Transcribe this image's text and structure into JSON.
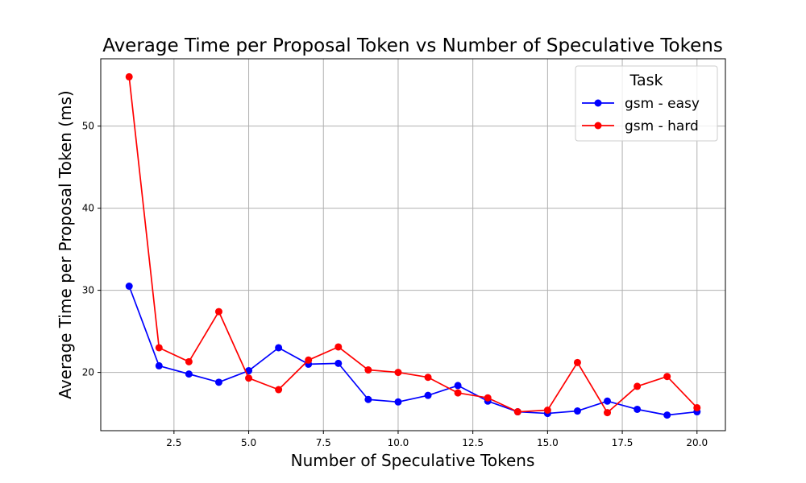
{
  "chart_data": {
    "type": "line",
    "title": "Average Time per Proposal Token vs Number of Speculative Tokens",
    "xlabel": "Number of Speculative Tokens",
    "ylabel": "Average Time per Proposal Token (ms)",
    "xlim": [
      0.05,
      20.95
    ],
    "ylim": [
      12.9,
      58.2
    ],
    "xticks": [
      2.5,
      5.0,
      7.5,
      10.0,
      12.5,
      15.0,
      17.5,
      20.0
    ],
    "xtick_labels": [
      "2.5",
      "5.0",
      "7.5",
      "10.0",
      "12.5",
      "15.0",
      "17.5",
      "20.0"
    ],
    "yticks": [
      20,
      30,
      40,
      50
    ],
    "ytick_labels": [
      "20",
      "30",
      "40",
      "50"
    ],
    "grid": true,
    "legend": {
      "title": "Task",
      "placement": "top-right"
    },
    "x": [
      1,
      2,
      3,
      4,
      5,
      6,
      7,
      8,
      9,
      10,
      11,
      12,
      13,
      14,
      15,
      16,
      17,
      18,
      19,
      20
    ],
    "series": [
      {
        "name": "gsm - easy",
        "color": "#0000ff",
        "values": [
          30.5,
          20.8,
          19.8,
          18.8,
          20.2,
          23.0,
          21.0,
          21.1,
          16.7,
          16.4,
          17.2,
          18.4,
          16.5,
          15.2,
          15.0,
          15.3,
          16.5,
          15.5,
          14.8,
          15.2
        ]
      },
      {
        "name": "gsm - hard",
        "color": "#ff0000",
        "values": [
          56.0,
          23.0,
          21.3,
          27.4,
          19.3,
          17.9,
          21.5,
          23.1,
          20.3,
          20.0,
          19.4,
          17.5,
          16.9,
          15.2,
          15.4,
          21.2,
          15.1,
          18.3,
          19.5,
          15.7
        ]
      }
    ]
  }
}
